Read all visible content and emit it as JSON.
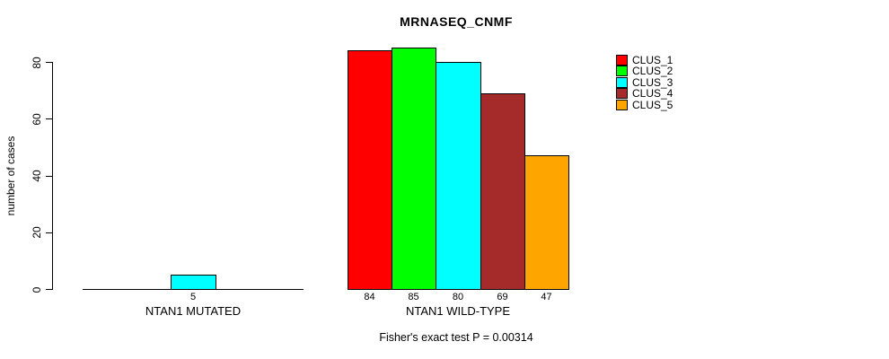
{
  "title": "MRNASEQ_CNMF",
  "footer": "Fisher's exact test P = 0.00314",
  "chart_data": {
    "type": "bar",
    "title": "MRNASEQ_CNMF",
    "xlabel": "",
    "ylabel": "number of cases",
    "yticks": [
      0,
      20,
      40,
      60,
      80
    ],
    "ylim": [
      0,
      87
    ],
    "grid": false,
    "legend_position": "right",
    "annotation": "Fisher's exact test P = 0.00314",
    "series": [
      {
        "name": "CLUS_1",
        "color": "#FF0000"
      },
      {
        "name": "CLUS_2",
        "color": "#00FF00"
      },
      {
        "name": "CLUS_3",
        "color": "#00FFFF"
      },
      {
        "name": "CLUS_4",
        "color": "#A52A2A"
      },
      {
        "name": "CLUS_5",
        "color": "#FFA500"
      }
    ],
    "groups": [
      {
        "label": "NTAN1 MUTATED",
        "values": [
          0,
          0,
          5,
          0,
          0
        ]
      },
      {
        "label": "NTAN1 WILD-TYPE",
        "values": [
          84,
          85,
          80,
          69,
          47
        ]
      }
    ]
  }
}
